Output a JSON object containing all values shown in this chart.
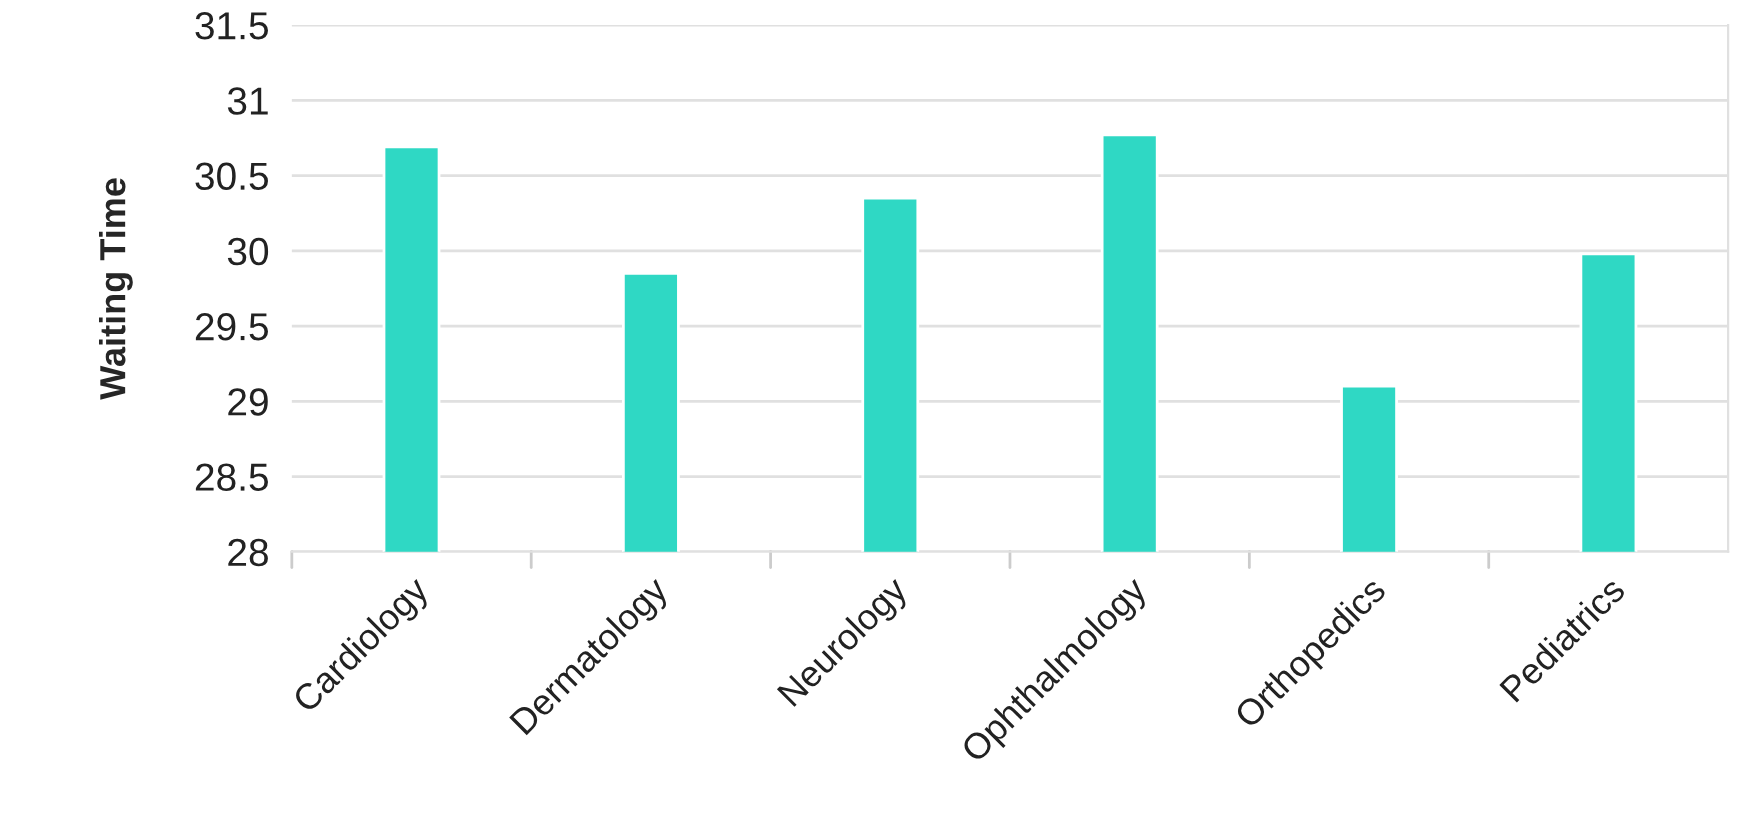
{
  "chart_data": {
    "type": "bar",
    "ylabel": "Waiting Time",
    "categories": [
      "Cardiology",
      "Dermatology",
      "Neurology",
      "Ophthalmology",
      "Orthopedics",
      "Pediatrics"
    ],
    "values": [
      30.69,
      29.85,
      30.35,
      30.77,
      29.1,
      29.98
    ],
    "color": "#2fd8c4",
    "ylim": [
      28,
      31.5
    ],
    "yticks": [
      28,
      28.5,
      29,
      29.5,
      30,
      30.5,
      31,
      31.5
    ],
    "grid": "y"
  }
}
